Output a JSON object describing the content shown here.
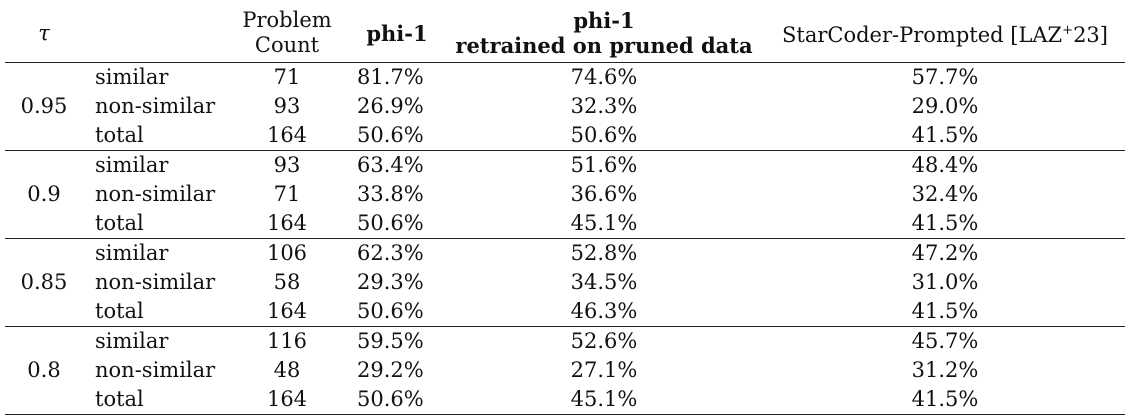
{
  "table": {
    "headers": {
      "tau": "τ",
      "problem_count_line1": "Problem",
      "problem_count_line2": "Count",
      "phi1": "phi-1",
      "retrained_line1": "phi-1",
      "retrained_line2": "retrained on pruned data",
      "starcoder_prefix": "StarCoder-Prompted [LAZ",
      "starcoder_sup": "+",
      "starcoder_suffix": "23]"
    },
    "groups": [
      {
        "tau": "0.95",
        "rows": [
          {
            "category": "similar",
            "count": "71",
            "phi1": "81.7%",
            "retrained": "74.6%",
            "starcoder": "57.7%"
          },
          {
            "category": "non-similar",
            "count": "93",
            "phi1": "26.9%",
            "retrained": "32.3%",
            "starcoder": "29.0%"
          },
          {
            "category": "total",
            "count": "164",
            "phi1": "50.6%",
            "retrained": "50.6%",
            "starcoder": "41.5%"
          }
        ]
      },
      {
        "tau": "0.9",
        "rows": [
          {
            "category": "similar",
            "count": "93",
            "phi1": "63.4%",
            "retrained": "51.6%",
            "starcoder": "48.4%"
          },
          {
            "category": "non-similar",
            "count": "71",
            "phi1": "33.8%",
            "retrained": "36.6%",
            "starcoder": "32.4%"
          },
          {
            "category": "total",
            "count": "164",
            "phi1": "50.6%",
            "retrained": "45.1%",
            "starcoder": "41.5%"
          }
        ]
      },
      {
        "tau": "0.85",
        "rows": [
          {
            "category": "similar",
            "count": "106",
            "phi1": "62.3%",
            "retrained": "52.8%",
            "starcoder": "47.2%"
          },
          {
            "category": "non-similar",
            "count": "58",
            "phi1": "29.3%",
            "retrained": "34.5%",
            "starcoder": "31.0%"
          },
          {
            "category": "total",
            "count": "164",
            "phi1": "50.6%",
            "retrained": "46.3%",
            "starcoder": "41.5%"
          }
        ]
      },
      {
        "tau": "0.8",
        "rows": [
          {
            "category": "similar",
            "count": "116",
            "phi1": "59.5%",
            "retrained": "52.6%",
            "starcoder": "45.7%"
          },
          {
            "category": "non-similar",
            "count": "48",
            "phi1": "29.2%",
            "retrained": "27.1%",
            "starcoder": "31.2%"
          },
          {
            "category": "total",
            "count": "164",
            "phi1": "50.6%",
            "retrained": "45.1%",
            "starcoder": "41.5%"
          }
        ]
      }
    ]
  }
}
